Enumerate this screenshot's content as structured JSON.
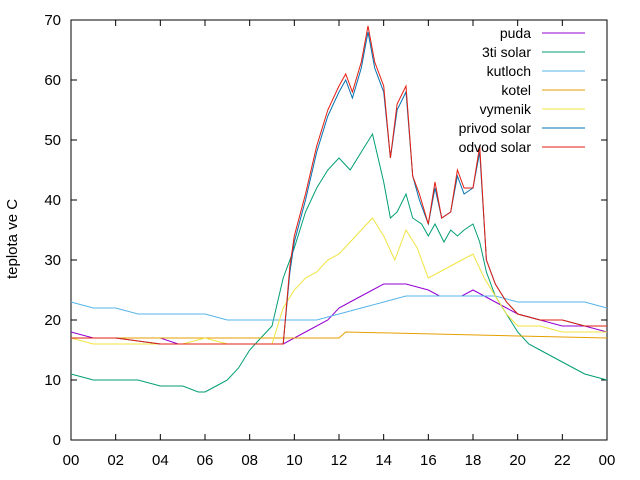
{
  "chart_data": {
    "type": "line",
    "title": "",
    "xlabel": "",
    "ylabel": "teplota ve C",
    "xlim": [
      0,
      24
    ],
    "ylim": [
      0,
      70
    ],
    "x_ticks": [
      "00",
      "02",
      "04",
      "06",
      "08",
      "10",
      "12",
      "14",
      "16",
      "18",
      "20",
      "22",
      "00"
    ],
    "y_ticks": [
      0,
      10,
      20,
      30,
      40,
      50,
      60,
      70
    ],
    "grid": false,
    "legend_position": "top-right",
    "series": [
      {
        "name": "puda",
        "color": "#9400d3",
        "x": [
          0,
          1,
          2,
          3,
          4,
          4.8,
          5.5,
          6,
          7,
          8,
          8.5,
          9.5,
          10.5,
          11.5,
          12,
          12.5,
          13,
          13.5,
          14,
          14.5,
          15,
          16,
          16.5,
          17,
          17.5,
          18,
          18.5,
          19,
          19.5,
          20,
          21,
          22,
          23,
          24
        ],
        "y": [
          18,
          17,
          17,
          17,
          17,
          16,
          16,
          16,
          16,
          16,
          16,
          16,
          18,
          20,
          22,
          23,
          24,
          25,
          26,
          26,
          26,
          25,
          24,
          24,
          24,
          25,
          24,
          23,
          22,
          21,
          20,
          19,
          19,
          18
        ]
      },
      {
        "name": "3ti solar",
        "color": "#009e73",
        "x": [
          0,
          1,
          2,
          3,
          4,
          5,
          5.7,
          6,
          6.5,
          7,
          7.5,
          8,
          8.5,
          9,
          9.5,
          10,
          10.5,
          11,
          11.5,
          12,
          12.5,
          13,
          13.5,
          14,
          14.3,
          14.6,
          15,
          15.3,
          15.7,
          16,
          16.3,
          16.7,
          17,
          17.3,
          17.6,
          18,
          18.3,
          18.6,
          19,
          19.5,
          20,
          20.5,
          21,
          22,
          23,
          24
        ],
        "y": [
          11,
          10,
          10,
          10,
          9,
          9,
          8,
          8,
          9,
          10,
          12,
          15,
          17,
          19,
          27,
          32,
          38,
          42,
          45,
          47,
          45,
          48,
          51,
          43,
          37,
          38,
          41,
          37,
          36,
          34,
          36,
          33,
          35,
          34,
          35,
          36,
          33,
          28,
          24,
          21,
          18,
          16,
          15,
          13,
          11,
          10
        ]
      },
      {
        "name": "kutloch",
        "color": "#56b4e9",
        "x": [
          0,
          1,
          2,
          3,
          4,
          5,
          6,
          7,
          8,
          9,
          10,
          11,
          12,
          13,
          14,
          15,
          16,
          17,
          18,
          19,
          20,
          21,
          22,
          23,
          24
        ],
        "y": [
          23,
          22,
          22,
          21,
          21,
          21,
          21,
          20,
          20,
          20,
          20,
          20,
          21,
          22,
          23,
          24,
          24,
          24,
          24,
          24,
          23,
          23,
          23,
          23,
          22
        ]
      },
      {
        "name": "kotel",
        "color": "#e69f00",
        "x": [
          0,
          12,
          12.3,
          24
        ],
        "y": [
          17,
          17,
          18,
          17
        ]
      },
      {
        "name": "vymenik",
        "color": "#f0e442",
        "x": [
          0,
          1,
          2,
          3,
          4,
          5,
          6,
          7,
          8,
          9,
          9.5,
          10,
          10.5,
          11,
          11.5,
          12,
          12.5,
          13,
          13.5,
          14,
          14.5,
          15,
          15.5,
          16,
          16.5,
          17,
          17.5,
          18,
          18.5,
          19,
          19.5,
          20,
          21,
          22,
          23,
          24
        ],
        "y": [
          17,
          16,
          16,
          16,
          16,
          16,
          17,
          16,
          16,
          16,
          22,
          25,
          27,
          28,
          30,
          31,
          33,
          35,
          37,
          34,
          30,
          35,
          32,
          27,
          28,
          29,
          30,
          31,
          27,
          24,
          21,
          19,
          19,
          18,
          18,
          18
        ]
      },
      {
        "name": "privod solar",
        "color": "#0072b2",
        "x": [
          0,
          2,
          4,
          6,
          8,
          9.5,
          9.8,
          10,
          10.5,
          11,
          11.5,
          12,
          12.3,
          12.6,
          13,
          13.3,
          13.6,
          14,
          14.3,
          14.6,
          15,
          15.3,
          15.6,
          16,
          16.3,
          16.6,
          17,
          17.3,
          17.6,
          18,
          18.3,
          18.6,
          19,
          19.5,
          20,
          21,
          22,
          23,
          24
        ],
        "y": [
          17,
          17,
          16,
          16,
          16,
          16,
          28,
          33,
          40,
          48,
          54,
          58,
          60,
          57,
          62,
          68,
          62,
          58,
          47,
          55,
          58,
          44,
          40,
          36,
          42,
          37,
          38,
          44,
          41,
          42,
          48,
          30,
          26,
          23,
          21,
          20,
          20,
          19,
          19
        ]
      },
      {
        "name": "odvod solar",
        "color": "#e51e10",
        "x": [
          0,
          2,
          4,
          6,
          8,
          9.5,
          9.8,
          10,
          10.5,
          11,
          11.5,
          12,
          12.3,
          12.6,
          13,
          13.3,
          13.6,
          14,
          14.3,
          14.6,
          15,
          15.3,
          15.6,
          16,
          16.3,
          16.6,
          17,
          17.3,
          17.6,
          18,
          18.3,
          18.6,
          19,
          19.5,
          20,
          21,
          22,
          23,
          24
        ],
        "y": [
          17,
          17,
          16,
          16,
          16,
          16,
          29,
          34,
          41,
          49,
          55,
          59,
          61,
          58,
          63,
          69,
          63,
          59,
          47,
          56,
          59,
          44,
          41,
          36,
          43,
          37,
          38,
          45,
          42,
          42,
          49,
          30,
          26,
          23,
          21,
          20,
          20,
          19,
          19
        ]
      }
    ]
  }
}
